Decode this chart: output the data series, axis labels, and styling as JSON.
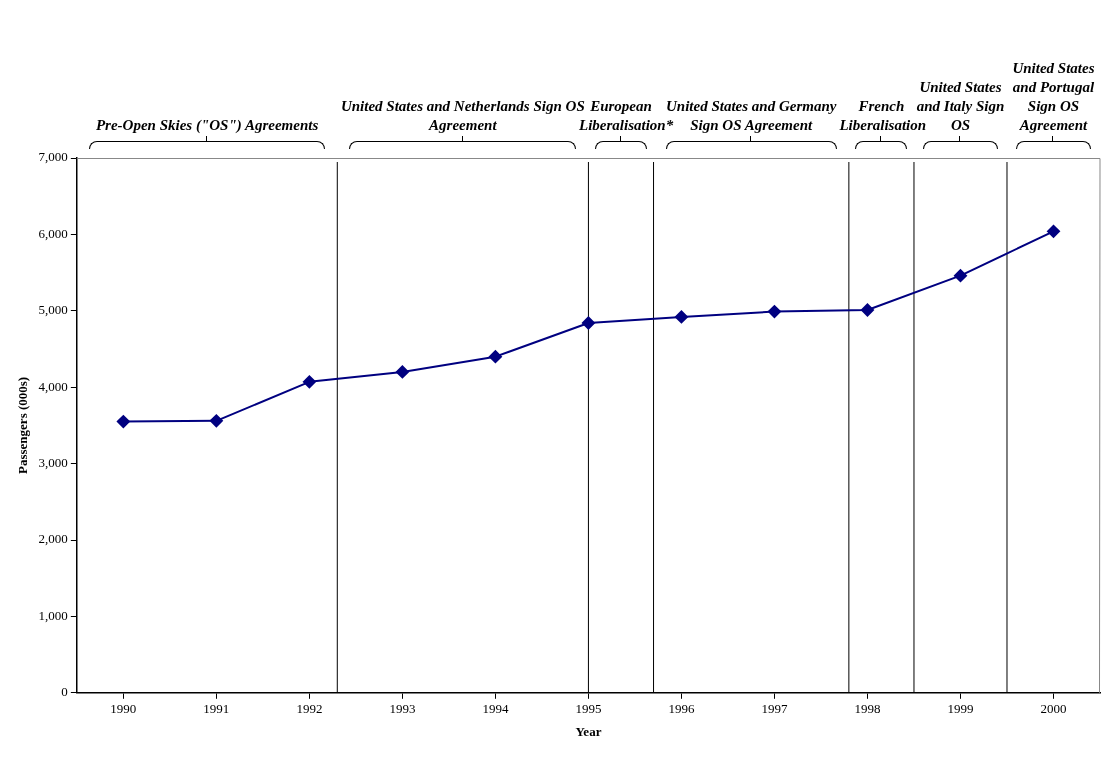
{
  "chart_data": {
    "type": "line",
    "xlabel": "Year",
    "ylabel": "Passengers (000s)",
    "x": [
      1990,
      1991,
      1992,
      1993,
      1994,
      1995,
      1996,
      1997,
      1998,
      1999,
      2000
    ],
    "series": [
      {
        "color": "#000080",
        "values": [
          3550,
          3560,
          4070,
          4200,
          4400,
          4840,
          4920,
          4990,
          5010,
          5460,
          6040
        ]
      }
    ],
    "xlim": [
      1989.5,
      2000.5
    ],
    "xticks": [
      1990,
      1991,
      1992,
      1993,
      1994,
      1995,
      1996,
      1997,
      1998,
      1999,
      2000
    ],
    "ylim": [
      0,
      7000
    ],
    "yticks": [
      0,
      {
        "value": 1000,
        "label": "1,000"
      },
      {
        "value": 2000,
        "label": "2,000"
      },
      {
        "value": 3000,
        "label": "3,000"
      },
      {
        "value": 4000,
        "label": "4,000"
      },
      {
        "value": 5000,
        "label": "5,000"
      },
      {
        "value": 6000,
        "label": "6,000"
      },
      {
        "value": 7000,
        "label": "7,000"
      }
    ],
    "ref_lines": [
      {
        "axis": "x",
        "value": 1992.3,
        "color": "#000000"
      },
      {
        "axis": "x",
        "value": 1995.0,
        "color": "#000000"
      },
      {
        "axis": "x",
        "value": 1995.7,
        "color": "#000000"
      },
      {
        "axis": "x",
        "value": 1997.8,
        "color": "#000000"
      },
      {
        "axis": "x",
        "value": 1998.5,
        "color": "#000000"
      },
      {
        "axis": "x",
        "value": 1999.5,
        "color": "#000000"
      }
    ],
    "annotations": [
      "Pre-Open Skies (\"OS\") Agreements",
      "United States and Netherlands Sign OS Agreement",
      "European Liberalisation*",
      "United States and Germany Sign OS Agreement",
      "French Liberalisation",
      "United States and Italy Sign OS",
      "United States and Portugal Sign OS Agreement"
    ],
    "grid": false,
    "legend": false,
    "marker": "diamond",
    "line_style": "solid"
  }
}
